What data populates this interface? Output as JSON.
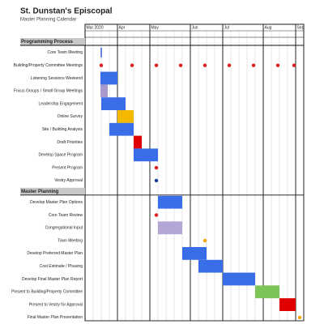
{
  "chart_data": {
    "type": "gantt",
    "title": "St. Dunstan's Episcopal",
    "subtitle": "Master Planning Calendar",
    "xlim": [
      0,
      27
    ],
    "xticks": [
      {
        "value": 0,
        "label": "Mar 2020"
      },
      {
        "value": 4,
        "label": "Apr"
      },
      {
        "value": 8,
        "label": "May"
      },
      {
        "value": 13,
        "label": "Jun"
      },
      {
        "value": 17,
        "label": "Jul"
      },
      {
        "value": 22,
        "label": "Aug"
      },
      {
        "value": 26,
        "label": "Sep"
      }
    ],
    "grid": true,
    "sections": [
      {
        "name": "Programming Process",
        "tasks": [
          {
            "name": "Core Team Meeting",
            "milestones": [
              2
            ],
            "color": "#2a4fd6",
            "shape": "line"
          },
          {
            "name": "Building/Property Committee Meetings",
            "milestones": [
              2,
              5.8,
              8.8,
              11.8,
              14.8,
              17.8,
              20.8,
              23.8,
              25.8
            ],
            "color": "#e02020",
            "shape": "dot"
          },
          {
            "name": "Listening Sessions Weekend",
            "start": 1.9,
            "end": 4,
            "color": "#3a6ee8"
          },
          {
            "name": "Focus Groups / Small Group Meetings",
            "start": 1.9,
            "end": 2.8,
            "color": "#a899cc"
          },
          {
            "name": "Leadership Engagement",
            "start": 2,
            "end": 5,
            "color": "#3a6ee8"
          },
          {
            "name": "Online Survey",
            "start": 4,
            "end": 6,
            "color": "#f5b800"
          },
          {
            "name": "Site / Building Analysis",
            "start": 3,
            "end": 6,
            "color": "#3a6ee8"
          },
          {
            "name": "Draft Priorities",
            "start": 6,
            "end": 7,
            "color": "#e00000"
          },
          {
            "name": "Develop Space Program",
            "start": 6,
            "end": 9,
            "color": "#3a6ee8"
          },
          {
            "name": "Present Program",
            "milestones": [
              8.8
            ],
            "color": "#e02020",
            "shape": "dot"
          },
          {
            "name": "Vestry Approval",
            "milestones": [
              8.8
            ],
            "color": "#1a3aa0",
            "shape": "dot"
          }
        ]
      },
      {
        "name": "Master Planning",
        "tasks": [
          {
            "name": "Develop Master Plan Options",
            "start": 9,
            "end": 12,
            "color": "#3a6ee8"
          },
          {
            "name": "Core Team Review",
            "milestones": [
              8.8
            ],
            "color": "#e02020",
            "shape": "dot"
          },
          {
            "name": "Congregational Input",
            "start": 9,
            "end": 12,
            "color": "#b3a6d6"
          },
          {
            "name": "Town Meeting",
            "milestones": [
              14.8
            ],
            "color": "#f5a800",
            "shape": "dot"
          },
          {
            "name": "Develop Preferred Master Plan",
            "start": 12,
            "end": 15,
            "color": "#3a6ee8"
          },
          {
            "name": "Cost Estimate / Phasing",
            "start": 14,
            "end": 17,
            "color": "#3a6ee8"
          },
          {
            "name": "Develop Final Master Plan Report",
            "start": 17,
            "end": 21,
            "color": "#3a6ee8"
          },
          {
            "name": "Present to Building/Property Committee",
            "start": 21,
            "end": 24,
            "color": "#7cc455"
          },
          {
            "name": "Present to Vestry for Approval",
            "start": 24,
            "end": 26,
            "color": "#e00000"
          },
          {
            "name": "Final Master Plan Presentation",
            "milestones": [
              26.5
            ],
            "color": "#f5a800",
            "shape": "dot"
          }
        ]
      }
    ]
  }
}
